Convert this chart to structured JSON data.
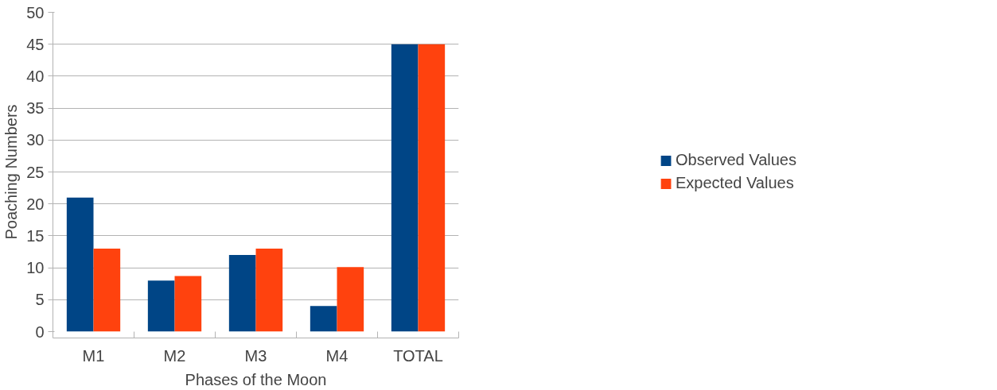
{
  "chart_data": {
    "type": "bar",
    "xlabel": "Phases of the Moon",
    "ylabel": "Poaching Numbers",
    "categories": [
      "M1",
      "M2",
      "M3",
      "M4",
      "TOTAL"
    ],
    "series": [
      {
        "name": "Observed Values",
        "color": "#004586",
        "values": [
          21,
          8,
          12,
          4,
          45
        ]
      },
      {
        "name": "Expected Values",
        "color": "#ff420e",
        "values": [
          13,
          8.7,
          13,
          10.1,
          45
        ]
      }
    ],
    "ylim": [
      0,
      50
    ],
    "yticks": [
      0,
      5,
      10,
      15,
      20,
      25,
      30,
      35,
      40,
      45,
      50
    ],
    "grid": "y",
    "legend": "right"
  }
}
